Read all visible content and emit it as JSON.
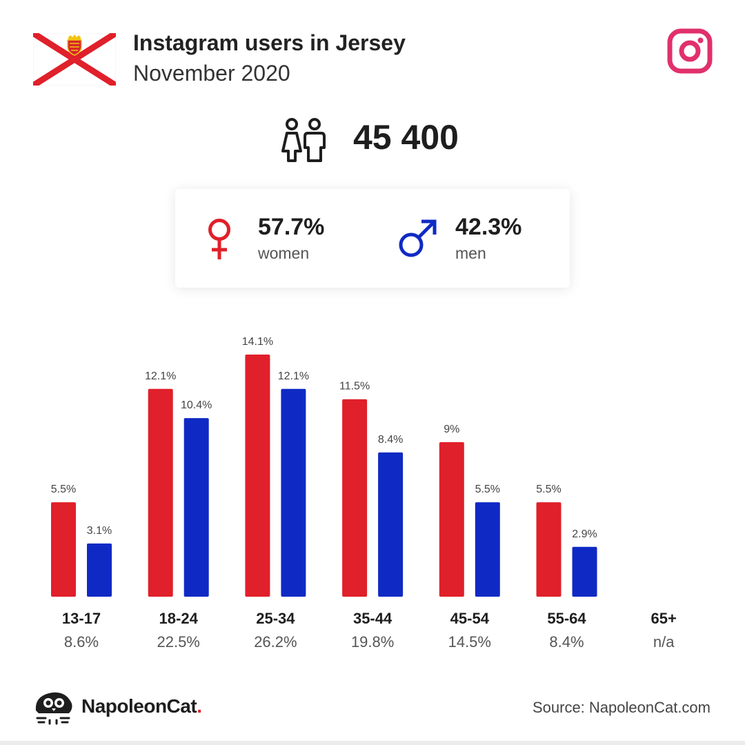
{
  "header": {
    "title": "Instagram users in Jersey",
    "subtitle": "November 2020"
  },
  "total_users": "45 400",
  "gender": {
    "women": {
      "pct": "57.7%",
      "label": "women",
      "color": "#e0202a"
    },
    "men": {
      "pct": "42.3%",
      "label": "men",
      "color": "#0f2ac4"
    }
  },
  "icons": {
    "flag": "jersey-flag-icon",
    "instagram": "instagram-icon",
    "people": "people-icon",
    "female": "female-symbol-icon",
    "male": "male-symbol-icon",
    "brand_logo": "napoleoncat-logo-icon"
  },
  "chart_data": {
    "type": "bar",
    "categories": [
      "13-17",
      "18-24",
      "25-34",
      "35-44",
      "45-54",
      "55-64",
      "65+"
    ],
    "category_shares": [
      "8.6%",
      "22.5%",
      "26.2%",
      "19.8%",
      "14.5%",
      "8.4%",
      "n/a"
    ],
    "series": [
      {
        "color": "#e0202a",
        "values": [
          5.5,
          12.1,
          14.1,
          11.5,
          9,
          5.5,
          null
        ],
        "labels": [
          "5.5%",
          "12.1%",
          "14.1%",
          "11.5%",
          "9%",
          "5.5%",
          null
        ]
      },
      {
        "color": "#0f2ac4",
        "values": [
          3.1,
          10.4,
          12.1,
          8.4,
          5.5,
          2.9,
          null
        ],
        "labels": [
          "3.1%",
          "10.4%",
          "12.1%",
          "8.4%",
          "5.5%",
          "2.9%",
          null
        ]
      }
    ],
    "ylim": [
      0,
      14.1
    ],
    "grid": false,
    "legend": "none"
  },
  "footer": {
    "brand_name": "NapoleonCat",
    "brand_dot": ".",
    "source": "Source: NapoleonCat.com"
  }
}
